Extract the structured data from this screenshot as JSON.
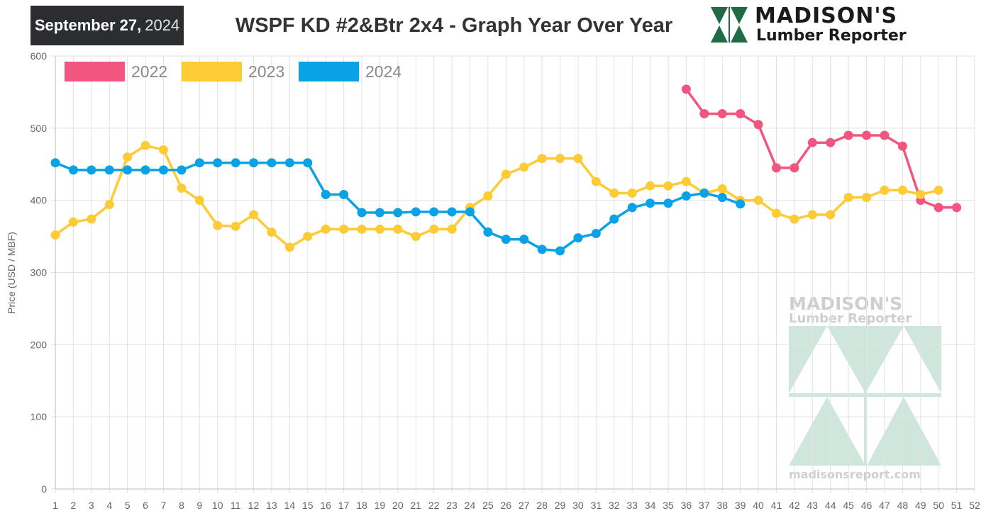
{
  "header": {
    "date_month_day": "September 27,",
    "date_year": "2024",
    "title": "WSPF KD #2&Btr 2x4 - Graph Year Over Year"
  },
  "logo": {
    "name": "MADISON'S",
    "subtitle": "Lumber Reporter",
    "icon": "madisons-m-mark-icon",
    "color": "#1f6b45"
  },
  "watermark": {
    "name": "MADISON'S",
    "subtitle": "Lumber Reporter",
    "url": "madisonsreport.com",
    "color": "#a9d3c2"
  },
  "chart_data": {
    "type": "line",
    "title": "WSPF KD #2&Btr 2x4 - Graph Year Over Year",
    "xlabel": "",
    "ylabel": "Price (USD / MBF)",
    "xlim": [
      1,
      52
    ],
    "ylim": [
      0,
      600
    ],
    "x_ticks": [
      1,
      2,
      3,
      4,
      5,
      6,
      7,
      8,
      9,
      10,
      11,
      12,
      13,
      14,
      15,
      16,
      17,
      18,
      19,
      20,
      21,
      22,
      23,
      24,
      25,
      26,
      27,
      28,
      29,
      30,
      31,
      32,
      33,
      34,
      35,
      36,
      37,
      38,
      39,
      40,
      41,
      42,
      43,
      44,
      45,
      46,
      47,
      48,
      49,
      50,
      51,
      52
    ],
    "y_ticks": [
      0,
      100,
      200,
      300,
      400,
      500,
      600
    ],
    "grid": true,
    "legend_position": "top-left",
    "series": [
      {
        "name": "2022",
        "color": "#f2557f",
        "x": [
          36,
          37,
          38,
          39,
          40,
          41,
          42,
          43,
          44,
          45,
          46,
          47,
          48,
          49,
          50,
          51
        ],
        "values": [
          554,
          520,
          520,
          520,
          505,
          445,
          445,
          480,
          480,
          490,
          490,
          490,
          475,
          400,
          390,
          390
        ]
      },
      {
        "name": "2023",
        "color": "#fccb35",
        "x": [
          1,
          2,
          3,
          4,
          5,
          6,
          7,
          8,
          9,
          10,
          11,
          12,
          13,
          14,
          15,
          16,
          17,
          18,
          19,
          20,
          21,
          22,
          23,
          24,
          25,
          26,
          27,
          28,
          29,
          30,
          31,
          32,
          33,
          34,
          35,
          36,
          37,
          38,
          39,
          40,
          41,
          42,
          43,
          44,
          45,
          46,
          47,
          48,
          49,
          50
        ],
        "values": [
          352,
          370,
          374,
          394,
          460,
          476,
          470,
          417,
          400,
          365,
          364,
          380,
          356,
          335,
          350,
          360,
          360,
          360,
          360,
          360,
          350,
          360,
          360,
          390,
          406,
          436,
          446,
          458,
          458,
          458,
          426,
          410,
          410,
          420,
          420,
          426,
          410,
          416,
          400,
          400,
          382,
          374,
          380,
          380,
          404,
          404,
          414,
          414,
          408,
          414
        ]
      },
      {
        "name": "2024",
        "color": "#0aa2e6",
        "x": [
          1,
          2,
          3,
          4,
          5,
          6,
          7,
          8,
          9,
          10,
          11,
          12,
          13,
          14,
          15,
          16,
          17,
          18,
          19,
          20,
          21,
          22,
          23,
          24,
          25,
          26,
          27,
          28,
          29,
          30,
          31,
          32,
          33,
          34,
          35,
          36,
          37,
          38,
          39
        ],
        "values": [
          452,
          442,
          442,
          442,
          442,
          442,
          442,
          442,
          452,
          452,
          452,
          452,
          452,
          452,
          452,
          408,
          408,
          383,
          383,
          383,
          384,
          384,
          384,
          384,
          356,
          346,
          346,
          332,
          330,
          348,
          354,
          374,
          390,
          396,
          396,
          406,
          410,
          404,
          395
        ]
      }
    ]
  }
}
